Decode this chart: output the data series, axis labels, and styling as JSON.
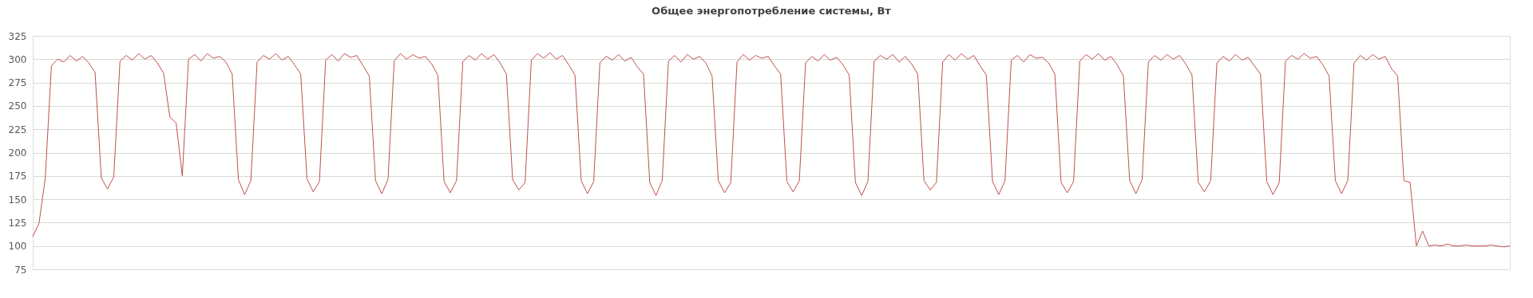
{
  "chart_data": {
    "type": "line",
    "title": "Общее энергопотребление системы, Вт",
    "categories": [
      null,
      null,
      null,
      null,
      null,
      null,
      null,
      null,
      null,
      null,
      null,
      null,
      null,
      null,
      null,
      null,
      null,
      null,
      null,
      null,
      null,
      null,
      null,
      null,
      null,
      null,
      null,
      null,
      null,
      null,
      null,
      null,
      null,
      null,
      null,
      null,
      null,
      null,
      null,
      null,
      null,
      null,
      null,
      null,
      null,
      null,
      null,
      null,
      null,
      null,
      null,
      null,
      null,
      null,
      null,
      null,
      null,
      null,
      null,
      null,
      null,
      null,
      null,
      null,
      null,
      null,
      null,
      null,
      null,
      null,
      null,
      null,
      null,
      null,
      null,
      null,
      null,
      null,
      null,
      null,
      null,
      null,
      null,
      null,
      null,
      null,
      null,
      null,
      null,
      null,
      null,
      null,
      null,
      null,
      null,
      null,
      null,
      null,
      null,
      null,
      null,
      null,
      null,
      null,
      null,
      null,
      null,
      null,
      null,
      null,
      null,
      null,
      null,
      null,
      null,
      null,
      null,
      null,
      null,
      null,
      null,
      null,
      null,
      null,
      null,
      null,
      null,
      null,
      null,
      null,
      null,
      null,
      null,
      null,
      null,
      null,
      null,
      null,
      null,
      null,
      null,
      null,
      null,
      null,
      null,
      null,
      null,
      null,
      null,
      null,
      null,
      null,
      null,
      null,
      null,
      null,
      null,
      null,
      null,
      null,
      null,
      null,
      null,
      null,
      null,
      null,
      null,
      null,
      null,
      null,
      null,
      null,
      null,
      null,
      null,
      null,
      null,
      null,
      null,
      null,
      null,
      null,
      null,
      null,
      null,
      null,
      null,
      null,
      null,
      null,
      null,
      null,
      null,
      null,
      null,
      null,
      null,
      null,
      null,
      null,
      null,
      null,
      null,
      null,
      null,
      null,
      null,
      null,
      null,
      null,
      null,
      null,
      null,
      null,
      null,
      null,
      null,
      null,
      null,
      null,
      null,
      null,
      null,
      null,
      null,
      null,
      null,
      null,
      null,
      null,
      null,
      null,
      null,
      null,
      null,
      null,
      null,
      null
    ],
    "series": [
      {
        "color": "#c0504d",
        "values": [
          110,
          124,
          172,
          293,
          300,
          297,
          304,
          298,
          303,
          296,
          286,
          173,
          161,
          174,
          298,
          304,
          299,
          306,
          300,
          304,
          296,
          285,
          238,
          232,
          175,
          300,
          305,
          298,
          306,
          301,
          303,
          297,
          284,
          171,
          155,
          170,
          297,
          304,
          300,
          306,
          299,
          303,
          294,
          284,
          172,
          158,
          169,
          299,
          305,
          298,
          306,
          302,
          304,
          293,
          282,
          170,
          156,
          171,
          298,
          306,
          300,
          305,
          301,
          303,
          295,
          283,
          169,
          157,
          170,
          297,
          304,
          299,
          306,
          300,
          305,
          296,
          284,
          171,
          160,
          168,
          299,
          306,
          301,
          307,
          300,
          304,
          294,
          283,
          170,
          156,
          169,
          296,
          303,
          299,
          305,
          298,
          302,
          292,
          284,
          168,
          154,
          170,
          298,
          304,
          297,
          305,
          300,
          303,
          296,
          282,
          170,
          157,
          168,
          297,
          305,
          299,
          304,
          301,
          303,
          293,
          284,
          169,
          158,
          170,
          296,
          303,
          298,
          305,
          299,
          302,
          294,
          283,
          168,
          154,
          169,
          298,
          304,
          300,
          305,
          297,
          303,
          295,
          284,
          170,
          160,
          168,
          297,
          305,
          299,
          306,
          300,
          304,
          293,
          283,
          169,
          155,
          170,
          299,
          304,
          297,
          305,
          301,
          302,
          296,
          284,
          168,
          157,
          169,
          298,
          305,
          300,
          306,
          299,
          303,
          294,
          282,
          170,
          156,
          171,
          297,
          304,
          299,
          305,
          300,
          304,
          295,
          283,
          168,
          158,
          170,
          296,
          303,
          298,
          305,
          299,
          302,
          293,
          284,
          169,
          155,
          168,
          298,
          304,
          300,
          306,
          301,
          303,
          294,
          282,
          170,
          156,
          170,
          296,
          304,
          299,
          305,
          300,
          303,
          290,
          282,
          170,
          168,
          100,
          116,
          100,
          101,
          100,
          102,
          100,
          100,
          101,
          100,
          100,
          100,
          101,
          100,
          99,
          100
        ]
      }
    ],
    "ylim": [
      75,
      325
    ],
    "yticks": [
      75,
      100,
      125,
      150,
      175,
      200,
      225,
      250,
      275,
      300,
      325
    ],
    "grid": "y",
    "tick_labels": "y",
    "line_style": "solid",
    "marker": "none"
  }
}
